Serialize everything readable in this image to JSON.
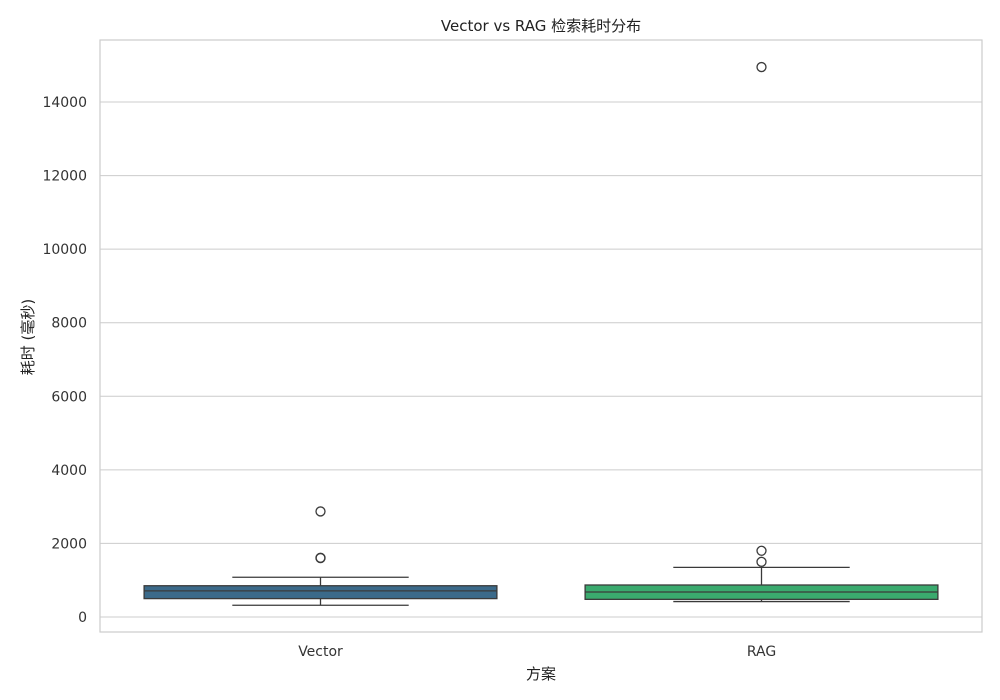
{
  "chart_data": {
    "type": "boxplot",
    "title": "Vector vs RAG 检索耗时分布",
    "xlabel": "方案",
    "ylabel": "耗时 (毫秒)",
    "ylim": [
      -400,
      15700
    ],
    "yticks": [
      0,
      2000,
      4000,
      6000,
      8000,
      10000,
      12000,
      14000
    ],
    "grid": true,
    "categories": [
      "Vector",
      "RAG"
    ],
    "boxes": [
      {
        "name": "Vector",
        "color": "#3b6a8a",
        "whisker_low": 320,
        "q1": 500,
        "median": 710,
        "q3": 850,
        "whisker_high": 1080,
        "outliers": [
          1600,
          1610,
          2870
        ]
      },
      {
        "name": "RAG",
        "color": "#3aaa6e",
        "whisker_low": 420,
        "q1": 480,
        "median": 680,
        "q3": 870,
        "whisker_high": 1350,
        "outliers": [
          1500,
          1800,
          14950
        ]
      }
    ]
  }
}
